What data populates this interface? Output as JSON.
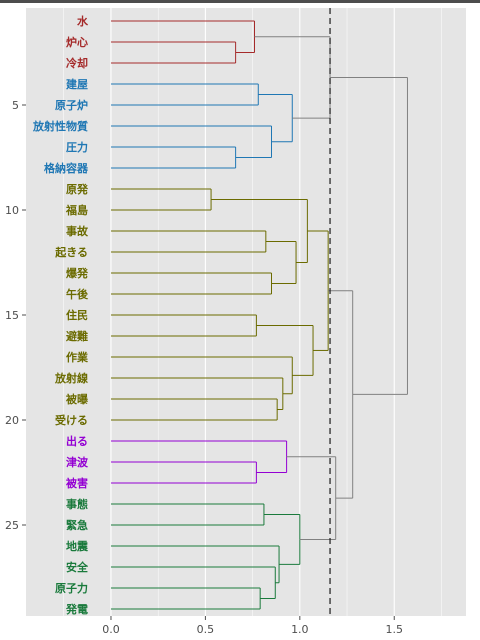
{
  "chart_data": {
    "type": "dendrogram",
    "title": "",
    "xlabel": "",
    "ylabel": "",
    "xlim": [
      -0.45,
      1.88
    ],
    "x_ticks": [
      "0.0",
      "0.5",
      "1.0",
      "1.5"
    ],
    "y_ticks": [
      "5",
      "10",
      "15",
      "20",
      "25"
    ],
    "grid": true,
    "cut_height": 1.16,
    "leaves": [
      {
        "label": "水",
        "cluster": 1
      },
      {
        "label": "炉心",
        "cluster": 1
      },
      {
        "label": "冷却",
        "cluster": 1
      },
      {
        "label": "建屋",
        "cluster": 2
      },
      {
        "label": "原子炉",
        "cluster": 2
      },
      {
        "label": "放射性物質",
        "cluster": 2
      },
      {
        "label": "圧力",
        "cluster": 2
      },
      {
        "label": "格納容器",
        "cluster": 2
      },
      {
        "label": "原発",
        "cluster": 3
      },
      {
        "label": "福島",
        "cluster": 3
      },
      {
        "label": "事故",
        "cluster": 3
      },
      {
        "label": "起きる",
        "cluster": 3
      },
      {
        "label": "爆発",
        "cluster": 3
      },
      {
        "label": "午後",
        "cluster": 3
      },
      {
        "label": "住民",
        "cluster": 3
      },
      {
        "label": "避難",
        "cluster": 3
      },
      {
        "label": "作業",
        "cluster": 3
      },
      {
        "label": "放射線",
        "cluster": 3
      },
      {
        "label": "被曝",
        "cluster": 3
      },
      {
        "label": "受ける",
        "cluster": 3
      },
      {
        "label": "出る",
        "cluster": 4
      },
      {
        "label": "津波",
        "cluster": 4
      },
      {
        "label": "被害",
        "cluster": 4
      },
      {
        "label": "事態",
        "cluster": 5
      },
      {
        "label": "緊急",
        "cluster": 5
      },
      {
        "label": "地震",
        "cluster": 5
      },
      {
        "label": "安全",
        "cluster": 5
      },
      {
        "label": "原子力",
        "cluster": 5
      },
      {
        "label": "発電",
        "cluster": 5
      }
    ],
    "cluster_colors": {
      "1": "#a52a2a",
      "2": "#1f77b4",
      "3": "#6b6b00",
      "4": "#9400d3",
      "5": "#1a7a3c",
      "above": "#808080"
    },
    "merges": [
      {
        "id": "A",
        "a": 2,
        "b": 3,
        "h": 0.66,
        "c": 1
      },
      {
        "id": "B",
        "a": 1,
        "b": "A",
        "h": 0.76,
        "c": 1
      },
      {
        "id": "C",
        "a": 4,
        "b": 5,
        "h": 0.78,
        "c": 2
      },
      {
        "id": "D",
        "a": 7,
        "b": 8,
        "h": 0.66,
        "c": 2
      },
      {
        "id": "E",
        "a": 6,
        "b": "D",
        "h": 0.85,
        "c": 2
      },
      {
        "id": "F",
        "a": "C",
        "b": "E",
        "h": 0.96,
        "c": 2
      },
      {
        "id": "G",
        "a": 9,
        "b": 10,
        "h": 0.53,
        "c": 3
      },
      {
        "id": "H",
        "a": 11,
        "b": 12,
        "h": 0.82,
        "c": 3
      },
      {
        "id": "I",
        "a": 13,
        "b": 14,
        "h": 0.85,
        "c": 3
      },
      {
        "id": "J",
        "a": "H",
        "b": "I",
        "h": 0.98,
        "c": 3
      },
      {
        "id": "K",
        "a": "G",
        "b": "J",
        "h": 1.04,
        "c": 3
      },
      {
        "id": "L",
        "a": 15,
        "b": 16,
        "h": 0.77,
        "c": 3
      },
      {
        "id": "M",
        "a": 19,
        "b": 20,
        "h": 0.88,
        "c": 3
      },
      {
        "id": "N",
        "a": 18,
        "b": "M",
        "h": 0.91,
        "c": 3
      },
      {
        "id": "O",
        "a": 17,
        "b": "N",
        "h": 0.96,
        "c": 3
      },
      {
        "id": "P",
        "a": "L",
        "b": "O",
        "h": 1.07,
        "c": 3
      },
      {
        "id": "Q",
        "a": "K",
        "b": "P",
        "h": 1.15,
        "c": 3
      },
      {
        "id": "R",
        "a": 22,
        "b": 23,
        "h": 0.77,
        "c": 4
      },
      {
        "id": "S",
        "a": 21,
        "b": "R",
        "h": 0.93,
        "c": 4
      },
      {
        "id": "T",
        "a": 24,
        "b": 25,
        "h": 0.81,
        "c": 5
      },
      {
        "id": "U",
        "a": 28,
        "b": 29,
        "h": 0.79,
        "c": 5
      },
      {
        "id": "V",
        "a": 27,
        "b": "U",
        "h": 0.87,
        "c": 5
      },
      {
        "id": "W",
        "a": 26,
        "b": "V",
        "h": 0.89,
        "c": 5
      },
      {
        "id": "X",
        "a": "T",
        "b": "W",
        "h": 1.0,
        "c": 5
      },
      {
        "id": "Y",
        "a": "S",
        "b": "X",
        "h": 1.19,
        "c": "above"
      },
      {
        "id": "Z",
        "a": "B",
        "b": "F",
        "h": 1.16,
        "c": "above"
      },
      {
        "id": "AA",
        "a": "Q",
        "b": "Y",
        "h": 1.28,
        "c": "above"
      },
      {
        "id": "AB",
        "a": "Z",
        "b": "AA",
        "h": 1.57,
        "c": "above"
      }
    ]
  }
}
